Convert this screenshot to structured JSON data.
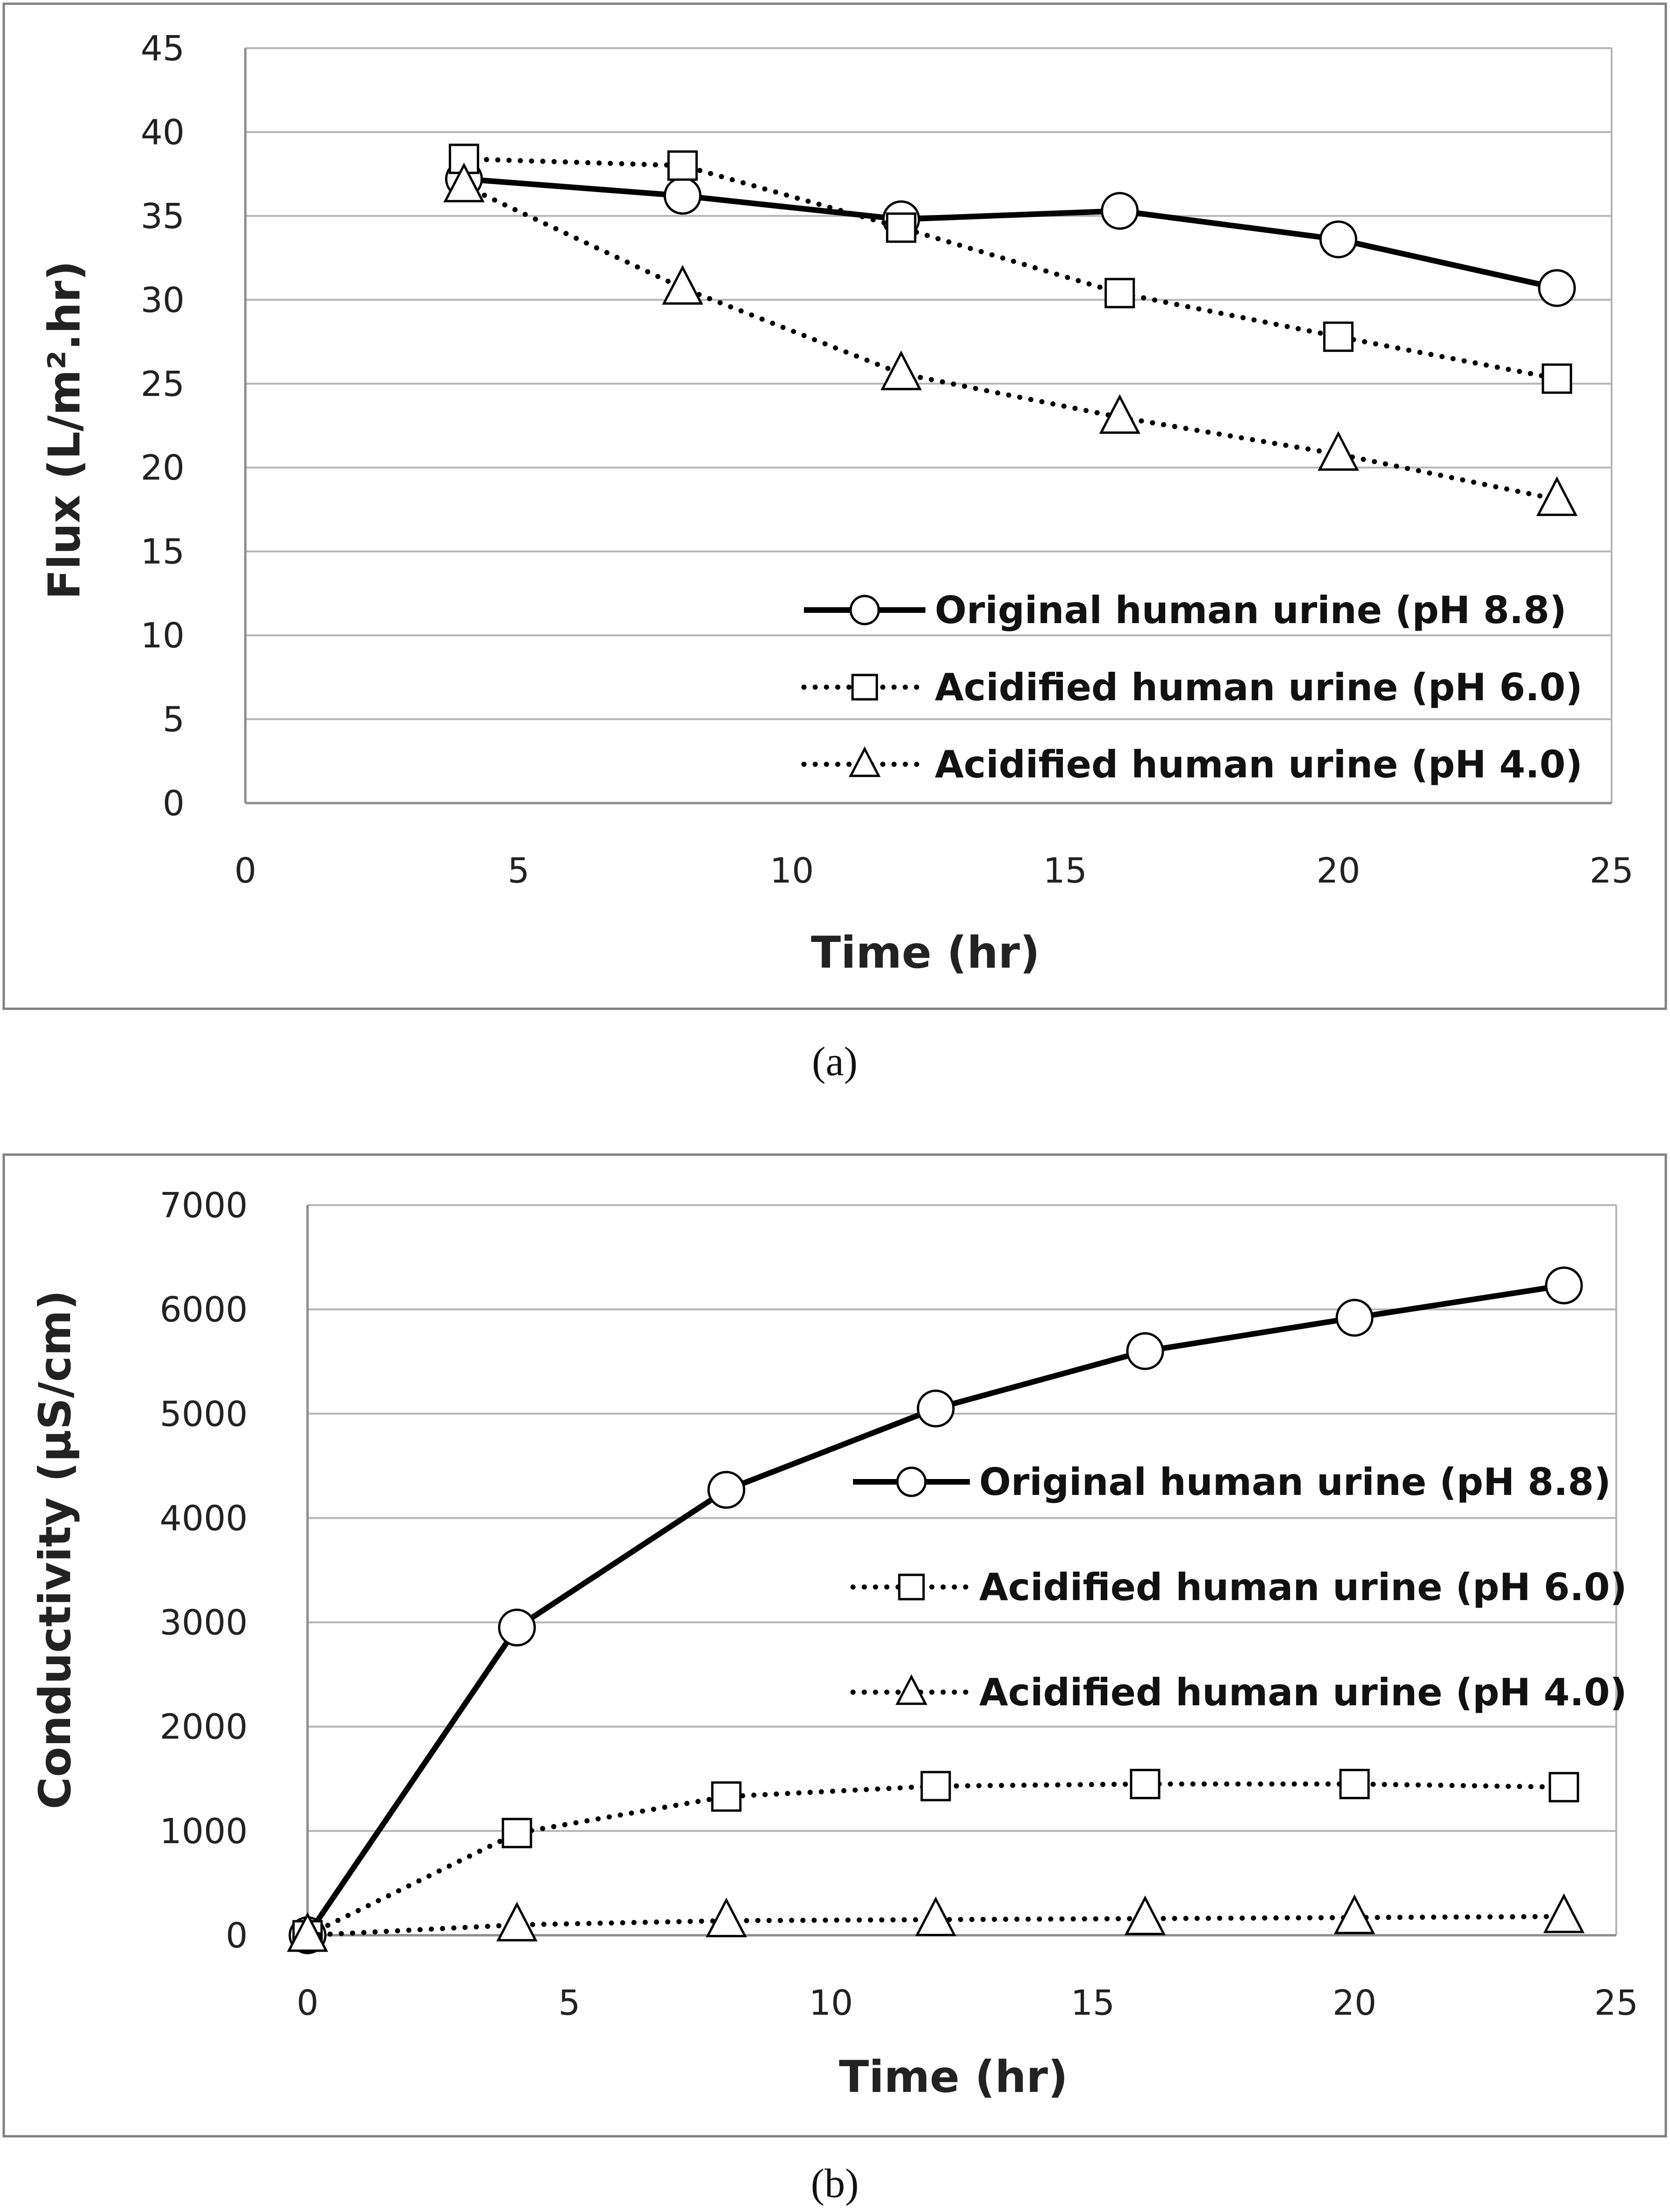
{
  "chart_data": [
    {
      "type": "line",
      "caption": "(a)",
      "xlabel": "Time (hr)",
      "ylabel": "Flux (L/m².hr)",
      "xlim": [
        0,
        25
      ],
      "ylim": [
        0,
        45
      ],
      "xticks": [
        0,
        5,
        10,
        15,
        20,
        25
      ],
      "yticks": [
        0,
        5,
        10,
        15,
        20,
        25,
        30,
        35,
        40,
        45
      ],
      "grid": "horizontal",
      "legend_position": "bottom-right",
      "series": [
        {
          "name": "Original human urine (pH 8.8)",
          "marker": "circle",
          "line": "solid",
          "x": [
            4,
            8,
            12,
            16,
            20,
            24
          ],
          "y": [
            37.2,
            36.2,
            34.8,
            35.3,
            33.6,
            30.7
          ]
        },
        {
          "name": "Acidified human urine (pH 6.0)",
          "marker": "square",
          "line": "dotted",
          "x": [
            4,
            8,
            12,
            16,
            20,
            24
          ],
          "y": [
            38.4,
            38.0,
            34.3,
            30.4,
            27.8,
            25.3
          ]
        },
        {
          "name": "Acidified human urine (pH 4.0)",
          "marker": "triangle",
          "line": "dotted",
          "x": [
            4,
            8,
            12,
            16,
            20,
            24
          ],
          "y": [
            36.8,
            30.7,
            25.6,
            23.0,
            20.8,
            18.1
          ]
        }
      ]
    },
    {
      "type": "line",
      "caption": "(b)",
      "xlabel": "Time (hr)",
      "ylabel": "Conductivity (µS/cm)",
      "xlim": [
        0,
        25
      ],
      "ylim": [
        0,
        7000
      ],
      "xticks": [
        0,
        5,
        10,
        15,
        20,
        25
      ],
      "yticks": [
        0,
        1000,
        2000,
        3000,
        4000,
        5000,
        6000,
        7000
      ],
      "grid": "horizontal",
      "legend_position": "right",
      "series": [
        {
          "name": "Original human urine (pH 8.8)",
          "marker": "circle",
          "line": "solid",
          "x": [
            0,
            4,
            8,
            12,
            16,
            20,
            24
          ],
          "y": [
            0,
            2950,
            4270,
            5050,
            5600,
            5920,
            6230
          ]
        },
        {
          "name": "Acidified human urine (pH 6.0)",
          "marker": "square",
          "line": "dotted",
          "x": [
            0,
            4,
            8,
            12,
            16,
            20,
            24
          ],
          "y": [
            0,
            980,
            1330,
            1430,
            1450,
            1450,
            1420
          ]
        },
        {
          "name": "Acidified human urine (pH 4.0)",
          "marker": "triangle",
          "line": "dotted",
          "x": [
            0,
            4,
            8,
            12,
            16,
            20,
            24
          ],
          "y": [
            0,
            100,
            140,
            150,
            160,
            170,
            180
          ]
        }
      ]
    }
  ]
}
